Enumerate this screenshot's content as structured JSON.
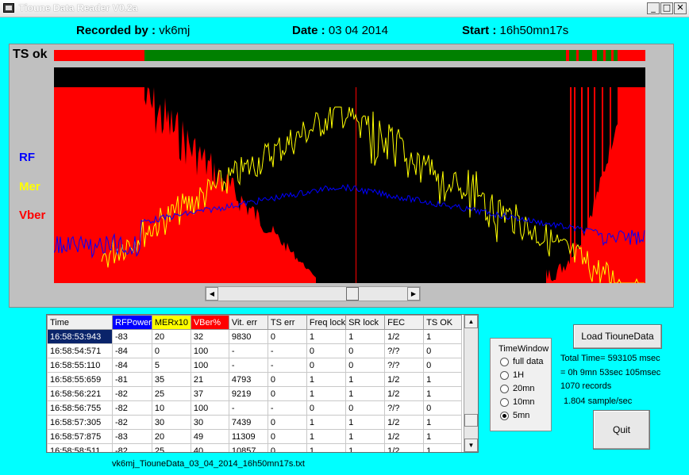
{
  "window": {
    "title": "Tioune Data Reader V0.2a",
    "controls": {
      "minimize": "_",
      "maximize": "□",
      "close": "✕"
    }
  },
  "header": {
    "recorded_label": "Recorded by :",
    "recorded_value": "vk6mj",
    "date_label": "Date :",
    "date_value": "03 04 2014",
    "start_label": "Start :",
    "start_value": "16h50mn17s"
  },
  "plot": {
    "ts_label": "TS ok",
    "legend": [
      {
        "label": "RF",
        "color": "#0000FF"
      },
      {
        "label": "Mer",
        "color": "#FFFF00"
      },
      {
        "label": "Vber",
        "color": "#FF0000"
      }
    ],
    "colors": {
      "ts_ok": "#008000",
      "ts_err": "#FF0000",
      "background": "#000000"
    },
    "scroll_position": 0.72
  },
  "table": {
    "columns": [
      {
        "label": "Time",
        "bg": "#f0f0f0",
        "color": "#000000"
      },
      {
        "label": "RFPower",
        "bg": "#0000FF",
        "color": "#FFFFFF"
      },
      {
        "label": "MERx10",
        "bg": "#FFFF00",
        "color": "#000000"
      },
      {
        "label": "VBer%",
        "bg": "#FF0000",
        "color": "#FFFFFF"
      },
      {
        "label": "Vit. err",
        "bg": "#f0f0f0",
        "color": "#000000"
      },
      {
        "label": "TS err",
        "bg": "#f0f0f0",
        "color": "#000000"
      },
      {
        "label": "Freq lock",
        "bg": "#f0f0f0",
        "color": "#000000"
      },
      {
        "label": "SR lock",
        "bg": "#f0f0f0",
        "color": "#000000"
      },
      {
        "label": "FEC",
        "bg": "#f0f0f0",
        "color": "#000000"
      },
      {
        "label": "TS OK",
        "bg": "#f0f0f0",
        "color": "#000000"
      }
    ],
    "rows": [
      [
        "16:58:53:943",
        "-83",
        "20",
        "32",
        "9830",
        "0",
        "1",
        "1",
        "1/2",
        "1"
      ],
      [
        "16:58:54:571",
        "-84",
        "0",
        "100",
        "-",
        "-",
        "0",
        "0",
        "?/?",
        "0"
      ],
      [
        "16:58:55:110",
        "-84",
        "5",
        "100",
        "-",
        "-",
        "0",
        "0",
        "?/?",
        "0"
      ],
      [
        "16:58:55:659",
        "-81",
        "35",
        "21",
        "4793",
        "0",
        "1",
        "1",
        "1/2",
        "1"
      ],
      [
        "16:58:56:221",
        "-82",
        "25",
        "37",
        "9219",
        "0",
        "1",
        "1",
        "1/2",
        "1"
      ],
      [
        "16:58:56:755",
        "-82",
        "10",
        "100",
        "-",
        "-",
        "0",
        "0",
        "?/?",
        "0"
      ],
      [
        "16:58:57:305",
        "-82",
        "30",
        "30",
        "7439",
        "0",
        "1",
        "1",
        "1/2",
        "1"
      ],
      [
        "16:58:57:875",
        "-83",
        "20",
        "49",
        "11309",
        "0",
        "1",
        "1",
        "1/2",
        "1"
      ],
      [
        "16:58:58:511",
        "-82",
        "25",
        "40",
        "10857",
        "0",
        "1",
        "1",
        "1/2",
        "1"
      ]
    ],
    "selected_row": 0
  },
  "filename": "vk6mj_TiouneData_03_04_2014_16h50mn17s.txt",
  "timewindow": {
    "title": "TimeWindow",
    "options": [
      "full data",
      "1H",
      "20mn",
      "10mn",
      "5mn"
    ],
    "selected": 4
  },
  "buttons": {
    "load": "Load TiouneData",
    "quit": "Quit"
  },
  "info": {
    "total_time": "Total Time= 593105 msec",
    "duration": "= 0h 9mn 53sec 105msec",
    "records": "1070 records",
    "rate": "1.804 sample/sec"
  }
}
